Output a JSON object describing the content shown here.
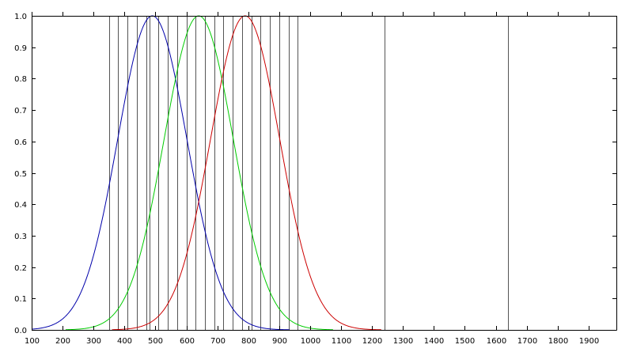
{
  "chart_data": {
    "type": "line",
    "title": "",
    "xlabel": "",
    "ylabel": "",
    "xlim": [
      100,
      1990
    ],
    "ylim": [
      0,
      1
    ],
    "grid": false,
    "legend": "none",
    "x_ticks": [
      100,
      200,
      300,
      400,
      500,
      600,
      700,
      800,
      900,
      1000,
      1100,
      1200,
      1300,
      1400,
      1500,
      1600,
      1700,
      1800,
      1900
    ],
    "y_ticks": [
      0.0,
      0.1,
      0.2,
      0.3,
      0.4,
      0.5,
      0.6,
      0.7,
      0.8,
      0.9,
      1.0
    ],
    "vertical_lines": [
      350,
      380,
      410,
      440,
      470,
      480,
      510,
      540,
      570,
      600,
      630,
      660,
      690,
      720,
      750,
      780,
      810,
      840,
      870,
      900,
      930,
      960,
      1240,
      1640
    ],
    "series": [
      {
        "color": "#0000aa",
        "shape": "gaussian",
        "peak_x": 490,
        "peak_y": 1.0,
        "sigma": 112,
        "x_start": 100,
        "x_end": 935
      },
      {
        "color": "#00cc00",
        "shape": "gaussian",
        "peak_x": 640,
        "peak_y": 1.0,
        "sigma": 112,
        "x_start": 210,
        "x_end": 1075
      },
      {
        "color": "#cc0000",
        "shape": "gaussian",
        "peak_x": 790,
        "peak_y": 1.0,
        "sigma": 112,
        "x_start": 360,
        "x_end": 1230
      }
    ],
    "colors": {
      "axis": "#000000",
      "vertical_line": "#555555"
    }
  }
}
